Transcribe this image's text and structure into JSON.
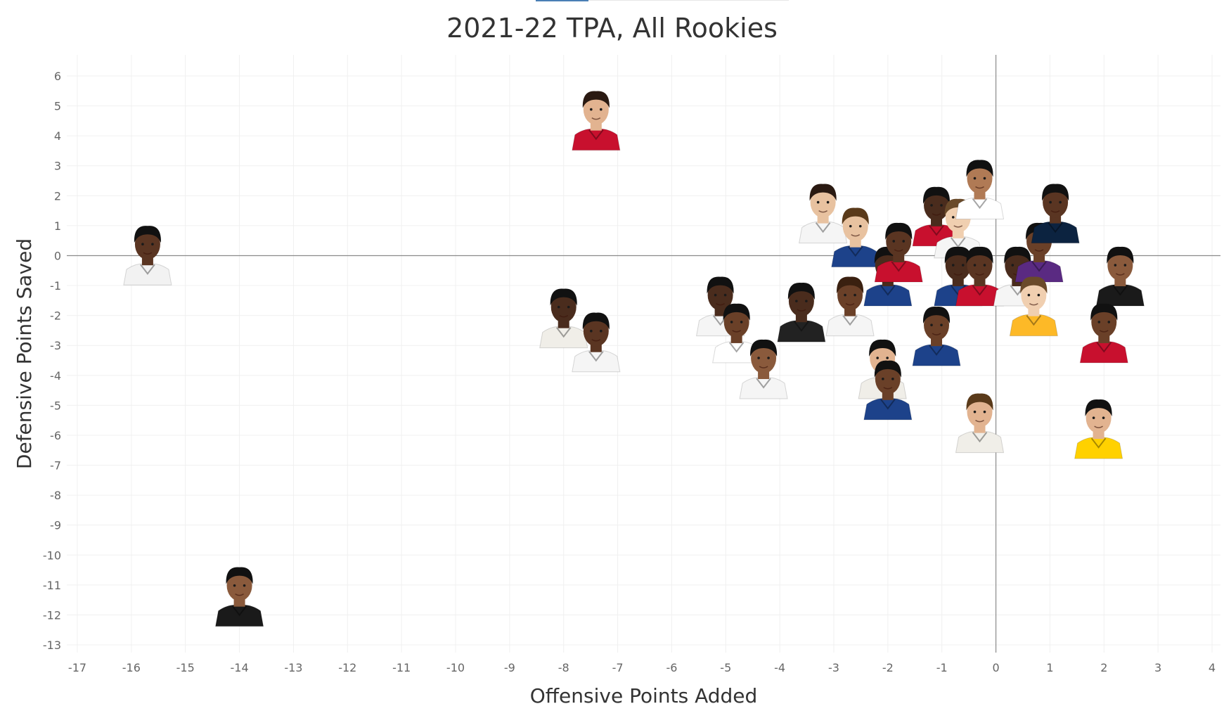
{
  "chart_data": {
    "type": "scatter",
    "title": "2021-22 TPA, All Rookies",
    "xlabel": "Offensive Points Added",
    "ylabel": "Defensive Points Saved",
    "xlim": [
      -17,
      4
    ],
    "ylim": [
      -13,
      6
    ],
    "xticks": [
      "-17",
      "-16",
      "-15",
      "-14",
      "-13",
      "-12",
      "-11",
      "-10",
      "-9",
      "-8",
      "-7",
      "-6",
      "-5",
      "-4",
      "-3",
      "-2",
      "-1",
      "0",
      "1",
      "2",
      "3",
      "4"
    ],
    "yticks": [
      "6",
      "5",
      "4",
      "3",
      "2",
      "1",
      "0",
      "-1",
      "-2",
      "-3",
      "-4",
      "-5",
      "-6",
      "-7",
      "-8",
      "-9",
      "-10",
      "-11",
      "-12",
      "-13"
    ],
    "grid": true,
    "reference_lines": [
      0,
      0
    ],
    "marker": "player headshot",
    "points": [
      {
        "x": -7.4,
        "y": 4.6,
        "skin": "#e2b390",
        "hair": "#2a1a12",
        "jersey": "#c8102e"
      },
      {
        "x": -15.7,
        "y": 0.1,
        "skin": "#5a3522",
        "hair": "#111111",
        "jersey": "#f2f2f2"
      },
      {
        "x": -14.0,
        "y": -11.3,
        "skin": "#8a5a3c",
        "hair": "#111111",
        "jersey": "#1a1a1a"
      },
      {
        "x": -8.0,
        "y": -2.0,
        "skin": "#4a2c1d",
        "hair": "#111111",
        "jersey": "#f0eee8"
      },
      {
        "x": -7.4,
        "y": -2.8,
        "skin": "#5a3522",
        "hair": "#111111",
        "jersey": "#f5f5f5"
      },
      {
        "x": -5.1,
        "y": -1.6,
        "skin": "#4a2c1d",
        "hair": "#111111",
        "jersey": "#f5f5f5"
      },
      {
        "x": -4.8,
        "y": -2.5,
        "skin": "#6a4028",
        "hair": "#111111",
        "jersey": "#ffffff"
      },
      {
        "x": -4.3,
        "y": -3.7,
        "skin": "#8a5a3c",
        "hair": "#111111",
        "jersey": "#f5f5f5"
      },
      {
        "x": -3.6,
        "y": -1.8,
        "skin": "#4a2c1d",
        "hair": "#111111",
        "jersey": "#222222"
      },
      {
        "x": -3.2,
        "y": 1.5,
        "skin": "#e8c2a0",
        "hair": "#2a1a12",
        "jersey": "#f5f5f5"
      },
      {
        "x": -2.7,
        "y": -1.6,
        "skin": "#6a4028",
        "hair": "#3a2010",
        "jersey": "#f5f5f5"
      },
      {
        "x": -2.6,
        "y": 0.7,
        "skin": "#e8c2a0",
        "hair": "#5a3a1a",
        "jersey": "#1d428a"
      },
      {
        "x": -2.0,
        "y": -0.6,
        "skin": "#4a2c1d",
        "hair": "#111111",
        "jersey": "#1d428a"
      },
      {
        "x": -1.8,
        "y": 0.2,
        "skin": "#5a3522",
        "hair": "#111111",
        "jersey": "#c8102e"
      },
      {
        "x": -2.1,
        "y": -3.7,
        "skin": "#e2b390",
        "hair": "#111111",
        "jersey": "#f0eee8"
      },
      {
        "x": -2.0,
        "y": -4.4,
        "skin": "#6a4028",
        "hair": "#111111",
        "jersey": "#1d428a"
      },
      {
        "x": -1.1,
        "y": 1.4,
        "skin": "#4a2c1d",
        "hair": "#111111",
        "jersey": "#c8102e"
      },
      {
        "x": -0.7,
        "y": 1.0,
        "skin": "#f0cfb0",
        "hair": "#6a4a2a",
        "jersey": "#f5f5f5"
      },
      {
        "x": -0.3,
        "y": 2.3,
        "skin": "#b07a55",
        "hair": "#111111",
        "jersey": "#ffffff"
      },
      {
        "x": -0.7,
        "y": -0.6,
        "skin": "#4a2c1d",
        "hair": "#111111",
        "jersey": "#1d428a"
      },
      {
        "x": -1.1,
        "y": -2.6,
        "skin": "#6a4028",
        "hair": "#111111",
        "jersey": "#1d428a"
      },
      {
        "x": -0.3,
        "y": -0.6,
        "skin": "#5a3522",
        "hair": "#111111",
        "jersey": "#c8102e"
      },
      {
        "x": 0.4,
        "y": -0.6,
        "skin": "#4a2c1d",
        "hair": "#111111",
        "jersey": "#f5f5f5"
      },
      {
        "x": 0.8,
        "y": 0.2,
        "skin": "#6a4028",
        "hair": "#111111",
        "jersey": "#5a2a82"
      },
      {
        "x": 1.1,
        "y": 1.5,
        "skin": "#5a3522",
        "hair": "#111111",
        "jersey": "#0c2340"
      },
      {
        "x": 0.7,
        "y": -1.6,
        "skin": "#f0cfb0",
        "hair": "#6a4a2a",
        "jersey": "#fdb927"
      },
      {
        "x": -0.3,
        "y": -5.5,
        "skin": "#e2b390",
        "hair": "#5a3a1a",
        "jersey": "#f0eee8"
      },
      {
        "x": 2.3,
        "y": -0.6,
        "skin": "#8a5a3c",
        "hair": "#111111",
        "jersey": "#1a1a1a"
      },
      {
        "x": 2.0,
        "y": -2.5,
        "skin": "#6a4028",
        "hair": "#111111",
        "jersey": "#c8102e"
      },
      {
        "x": 1.9,
        "y": -5.7,
        "skin": "#e2b390",
        "hair": "#111111",
        "jersey": "#ffd100"
      }
    ]
  }
}
